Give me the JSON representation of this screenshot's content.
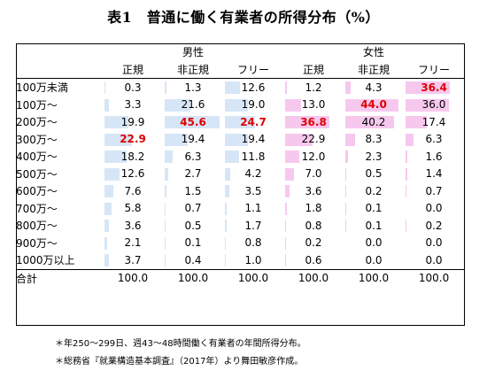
{
  "title": "表1　普通に働く有業者の所得分布（%）",
  "groups": {
    "male": "男性",
    "female": "女性"
  },
  "columns": [
    "正規",
    "非正規",
    "フリー",
    "正規",
    "非正規",
    "フリー"
  ],
  "rows": [
    {
      "label": "100万未満",
      "values": [
        "0.3",
        "1.3",
        "12.6",
        "1.2",
        "4.3",
        "36.4"
      ]
    },
    {
      "label": "100万～",
      "values": [
        "3.3",
        "21.6",
        "19.0",
        "13.0",
        "44.0",
        "36.0"
      ]
    },
    {
      "label": "200万～",
      "values": [
        "19.9",
        "45.6",
        "24.7",
        "36.8",
        "40.2",
        "17.4"
      ]
    },
    {
      "label": "300万～",
      "values": [
        "22.9",
        "19.4",
        "19.4",
        "22.9",
        "8.3",
        "6.3"
      ]
    },
    {
      "label": "400万～",
      "values": [
        "18.2",
        "6.3",
        "11.8",
        "12.0",
        "2.3",
        "1.6"
      ]
    },
    {
      "label": "500万～",
      "values": [
        "12.6",
        "2.7",
        "4.2",
        "7.0",
        "0.5",
        "1.4"
      ]
    },
    {
      "label": "600万～",
      "values": [
        "7.6",
        "1.5",
        "3.5",
        "3.6",
        "0.2",
        "0.7"
      ]
    },
    {
      "label": "700万～",
      "values": [
        "5.8",
        "0.7",
        "1.1",
        "1.8",
        "0.1",
        "0.0"
      ]
    },
    {
      "label": "800万～",
      "values": [
        "3.6",
        "0.5",
        "1.7",
        "0.8",
        "0.1",
        "0.2"
      ]
    },
    {
      "label": "900万～",
      "values": [
        "2.1",
        "0.1",
        "0.8",
        "0.2",
        "0.0",
        "0.0"
      ]
    },
    {
      "label": "1000万以上",
      "values": [
        "3.7",
        "0.4",
        "1.0",
        "0.6",
        "0.0",
        "0.0"
      ]
    }
  ],
  "total": {
    "label": "合計",
    "values": [
      "100.0",
      "100.0",
      "100.0",
      "100.0",
      "100.0",
      "100.0"
    ]
  },
  "highlight_max": [
    [
      3,
      0
    ],
    [
      2,
      1
    ],
    [
      2,
      2
    ],
    [
      2,
      3
    ],
    [
      1,
      4
    ],
    [
      0,
      5
    ]
  ],
  "bar_colors": {
    "male": "#d6e6f6",
    "female": "#f7c8ee",
    "highlight_text": "#e00000"
  },
  "notes": [
    "＊年250～299日、週43～48時間働く有業者の年間所得分布。",
    "＊総務省『就業構造基本調査』（2017年）より舞田敏彦作成。"
  ]
}
